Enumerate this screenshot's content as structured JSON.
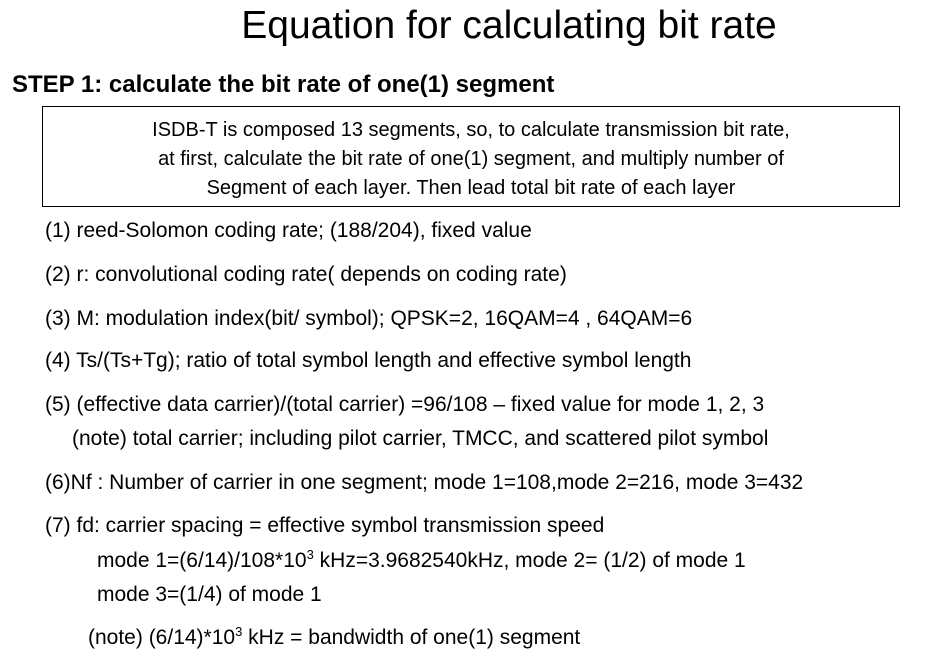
{
  "title": "Equation for calculating bit rate",
  "step_heading": "STEP 1: calculate the bit rate of one(1) segment",
  "box_lines": [
    "ISDB-T is composed 13 segments, so, to calculate transmission bit rate,",
    "at first, calculate the bit rate of one(1) segment, and multiply number of",
    "Segment of each layer. Then lead total bit rate of each layer"
  ],
  "items": {
    "i1": "(1) reed-Solomon coding rate; (188/204), fixed value",
    "i2": "(2) r: convolutional coding rate( depends on coding rate)",
    "i3": "(3) M: modulation index(bit/ symbol); QPSK=2, 16QAM=4 , 64QAM=6",
    "i4": "(4) Ts/(Ts+Tg); ratio of total symbol length and effective symbol length",
    "i5": "(5) (effective data carrier)/(total carrier) =96/108 – fixed value for mode 1, 2, 3",
    "i5_note": "(note) total carrier; including pilot carrier, TMCC, and scattered pilot symbol",
    "i6": "(6)Nf : Number of carrier in one segment; mode 1=108,mode 2=216, mode 3=432",
    "i7": "(7) fd: carrier spacing = effective symbol transmission speed",
    "i7_line2_a": "mode 1=(6/14)/108*10",
    "i7_line2_sup": "3",
    "i7_line2_b": " kHz=3.9682540kHz, mode 2= (1/2) of mode 1",
    "i7_line3": "mode 3=(1/4) of mode 1",
    "note_a": "(note) (6/14)*10",
    "note_sup": "3",
    "note_b": " kHz = bandwidth of one(1) segment"
  }
}
